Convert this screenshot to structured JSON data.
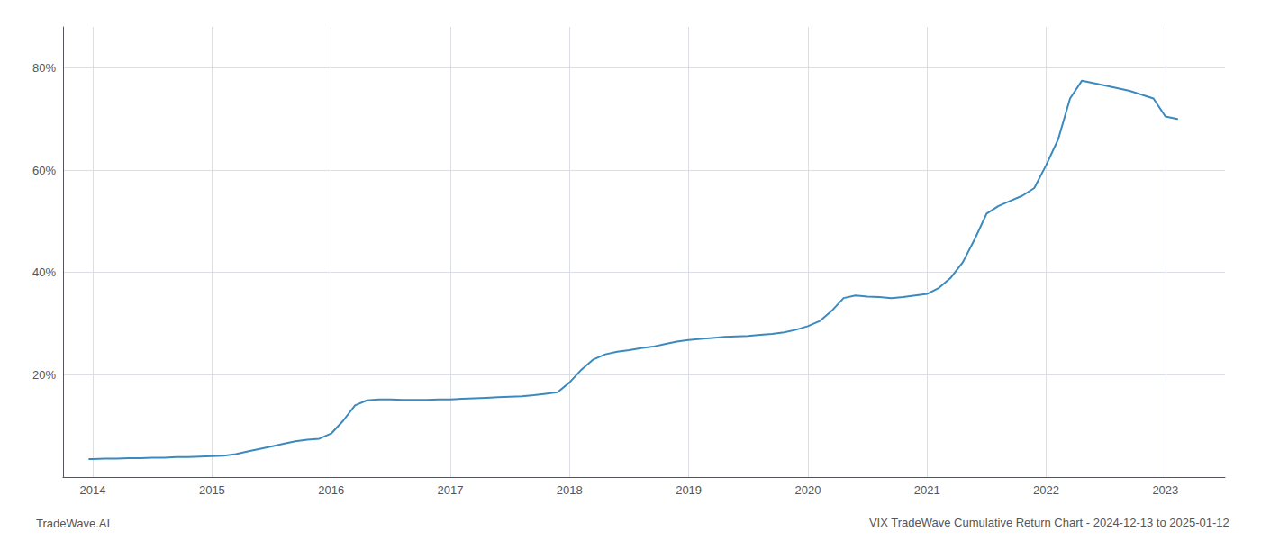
{
  "chart_data": {
    "type": "line",
    "title": "VIX TradeWave Cumulative Return Chart - 2024-12-13 to 2025-01-12",
    "annotations": [
      "TradeWave.AI"
    ],
    "x": [
      2013.97,
      2014.0,
      2014.1,
      2014.2,
      2014.3,
      2014.4,
      2014.5,
      2014.6,
      2014.7,
      2014.8,
      2014.9,
      2015.0,
      2015.1,
      2015.2,
      2015.3,
      2015.4,
      2015.5,
      2015.6,
      2015.7,
      2015.8,
      2015.9,
      2016.0,
      2016.1,
      2016.2,
      2016.3,
      2016.4,
      2016.5,
      2016.6,
      2016.7,
      2016.8,
      2016.9,
      2017.0,
      2017.1,
      2017.2,
      2017.3,
      2017.4,
      2017.5,
      2017.6,
      2017.7,
      2017.8,
      2017.9,
      2018.0,
      2018.1,
      2018.2,
      2018.3,
      2018.4,
      2018.5,
      2018.6,
      2018.7,
      2018.8,
      2018.9,
      2019.0,
      2019.1,
      2019.2,
      2019.3,
      2019.4,
      2019.5,
      2019.6,
      2019.7,
      2019.8,
      2019.9,
      2020.0,
      2020.1,
      2020.2,
      2020.3,
      2020.4,
      2020.5,
      2020.6,
      2020.7,
      2020.8,
      2020.9,
      2021.0,
      2021.1,
      2021.2,
      2021.3,
      2021.4,
      2021.5,
      2021.6,
      2021.7,
      2021.8,
      2021.9,
      2022.0,
      2022.1,
      2022.2,
      2022.3,
      2022.5,
      2022.7,
      2022.9,
      2023.0,
      2023.1
    ],
    "values": [
      3.5,
      3.5,
      3.6,
      3.6,
      3.7,
      3.7,
      3.8,
      3.8,
      3.9,
      3.9,
      4.0,
      4.1,
      4.2,
      4.5,
      5.0,
      5.5,
      6.0,
      6.5,
      7.0,
      7.3,
      7.5,
      8.5,
      11.0,
      14.0,
      15.0,
      15.2,
      15.2,
      15.1,
      15.1,
      15.1,
      15.2,
      15.2,
      15.3,
      15.4,
      15.5,
      15.6,
      15.7,
      15.8,
      16.0,
      16.3,
      16.6,
      18.5,
      21.0,
      23.0,
      24.0,
      24.5,
      24.8,
      25.2,
      25.5,
      26.0,
      26.5,
      26.8,
      27.0,
      27.2,
      27.4,
      27.5,
      27.6,
      27.8,
      28.0,
      28.3,
      28.8,
      29.5,
      30.5,
      32.5,
      35.0,
      35.5,
      35.3,
      35.2,
      35.0,
      35.2,
      35.5,
      35.8,
      37.0,
      39.0,
      42.0,
      46.5,
      51.5,
      53.0,
      54.0,
      55.0,
      56.5,
      61.0,
      66.0,
      74.0,
      77.5,
      76.5,
      75.5,
      74.0,
      70.5,
      70.0
    ],
    "color": "#3a8abf",
    "xlim": [
      2013.75,
      2023.5
    ],
    "ylim": [
      0,
      88
    ],
    "xticks": [
      2014,
      2015,
      2016,
      2017,
      2018,
      2019,
      2020,
      2021,
      2022,
      2023
    ],
    "yticks": [
      {
        "value": 20,
        "label": "20%"
      },
      {
        "value": 40,
        "label": "40%"
      },
      {
        "value": 60,
        "label": "60%"
      },
      {
        "value": 80,
        "label": "80%"
      }
    ],
    "grid": true
  }
}
